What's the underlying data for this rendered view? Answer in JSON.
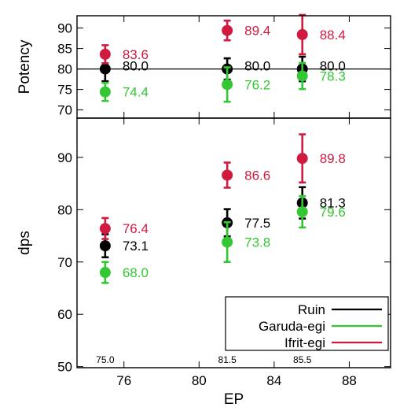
{
  "chart_data": [
    {
      "type": "scatter",
      "panel": "top",
      "ylabel": "Potency",
      "ylim": [
        68,
        93
      ],
      "yticks": [
        70,
        75,
        80,
        85,
        90
      ],
      "reference_line": 80,
      "series": [
        {
          "name": "Ruin",
          "color": "#000000",
          "points": [
            {
              "x": 75.0,
              "y": 80.0,
              "err": 3.0,
              "label": "80.0"
            },
            {
              "x": 81.5,
              "y": 80.0,
              "err": 2.6,
              "label": "80.0"
            },
            {
              "x": 85.5,
              "y": 80.0,
              "err": 3.0,
              "label": "80.0"
            }
          ]
        },
        {
          "name": "Garuda-egi",
          "color": "#33c733",
          "points": [
            {
              "x": 75.0,
              "y": 74.4,
              "err": 2.2,
              "label": "74.4"
            },
            {
              "x": 81.5,
              "y": 76.2,
              "err": 4.2,
              "label": "76.2"
            },
            {
              "x": 85.5,
              "y": 78.3,
              "err": 3.2,
              "label": "78.3"
            }
          ]
        },
        {
          "name": "Ifrit-egi",
          "color": "#d01a40",
          "points": [
            {
              "x": 75.0,
              "y": 83.6,
              "err": 2.2,
              "label": "83.6"
            },
            {
              "x": 81.5,
              "y": 89.4,
              "err": 2.4,
              "label": "89.4"
            },
            {
              "x": 85.5,
              "y": 88.4,
              "err": 4.8,
              "label": "88.4"
            }
          ]
        }
      ]
    },
    {
      "type": "scatter",
      "panel": "bottom",
      "xlabel": "EP",
      "ylabel": "dps",
      "xlim": [
        73.5,
        90.2
      ],
      "xticks": [
        76,
        80,
        84,
        88
      ],
      "ylim": [
        49.8,
        97.5
      ],
      "yticks": [
        50,
        60,
        70,
        80,
        90
      ],
      "x_annotations": [
        "75.0",
        "81.5",
        "85.5"
      ],
      "legend_position": "bottom-right",
      "series": [
        {
          "name": "Ruin",
          "color": "#000000",
          "points": [
            {
              "x": 75.0,
              "y": 73.1,
              "err": 2.2,
              "label": "73.1"
            },
            {
              "x": 81.5,
              "y": 77.5,
              "err": 2.6,
              "label": "77.5"
            },
            {
              "x": 85.5,
              "y": 81.3,
              "err": 3.0,
              "label": "81.3"
            }
          ]
        },
        {
          "name": "Garuda-egi",
          "color": "#33c733",
          "points": [
            {
              "x": 75.0,
              "y": 68.0,
              "err": 2.0,
              "label": "68.0"
            },
            {
              "x": 81.5,
              "y": 73.8,
              "err": 3.8,
              "label": "73.8"
            },
            {
              "x": 85.5,
              "y": 79.6,
              "err": 3.0,
              "label": "79.6"
            }
          ]
        },
        {
          "name": "Ifrit-egi",
          "color": "#d01a40",
          "points": [
            {
              "x": 75.0,
              "y": 76.4,
              "err": 2.0,
              "label": "76.4"
            },
            {
              "x": 81.5,
              "y": 86.6,
              "err": 2.4,
              "label": "86.6"
            },
            {
              "x": 85.5,
              "y": 89.8,
              "err": 4.6,
              "label": "89.8"
            }
          ]
        }
      ]
    }
  ]
}
